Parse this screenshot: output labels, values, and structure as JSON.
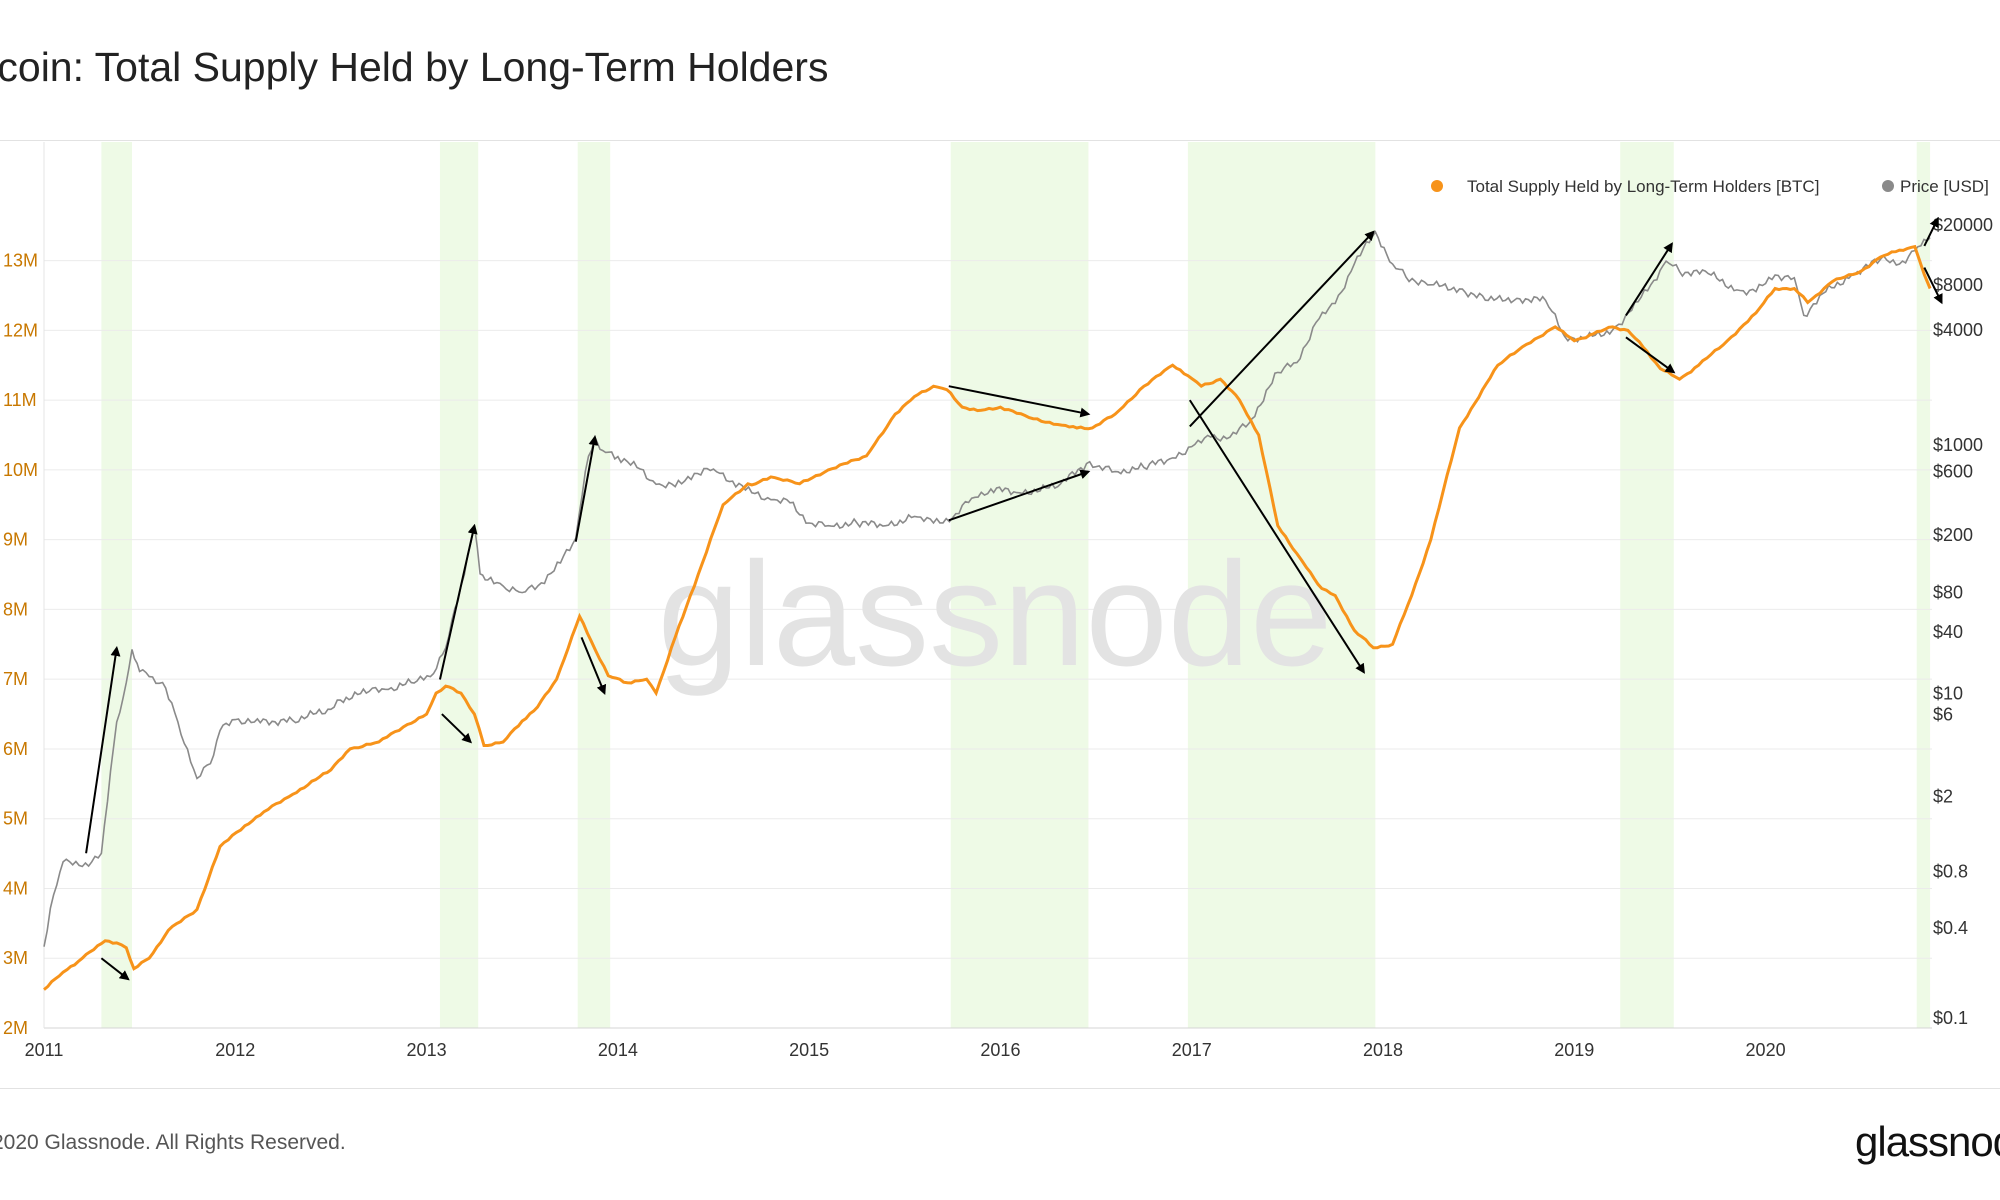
{
  "title": "tcoin: Total Supply Held by Long-Term Holders",
  "footer": {
    "copyright": "2020 Glassnode. All Rights Reserved.",
    "logo": "glassnod"
  },
  "watermark": "glassnode",
  "colors": {
    "supply": "#f7931a",
    "price": "#8a8a8a",
    "band": "#eefae6",
    "grid": "#ebebeb",
    "left_axis": "#c87800",
    "text": "#333333"
  },
  "chart_data": {
    "type": "line",
    "x_axis": {
      "ticks": [
        "2011",
        "2012",
        "2013",
        "2014",
        "2015",
        "2016",
        "2017",
        "2018",
        "2019",
        "2020"
      ],
      "range": [
        2011.0,
        2020.87
      ]
    },
    "y_left": {
      "ticks": [
        "13M",
        "12M",
        "11M",
        "10M",
        "9M",
        "8M",
        "7M",
        "6M",
        "5M",
        "4M",
        "3M",
        "2M"
      ],
      "tick_values": [
        13,
        12,
        11,
        10,
        9,
        8,
        7,
        6,
        5,
        4,
        3,
        2
      ],
      "range": [
        2,
        14.7
      ],
      "unit": "M BTC"
    },
    "y_right": {
      "scale": "log",
      "ticks": [
        "$20000",
        "$8000",
        "$4000",
        "$1000",
        "$600",
        "$200",
        "$80",
        "$40",
        "$10",
        "$6",
        "$2",
        "$0.8",
        "$0.4",
        "$0.1"
      ],
      "tick_values": [
        20000,
        8000,
        4000,
        1000,
        600,
        200,
        80,
        40,
        10,
        6,
        2,
        0.8,
        0.4,
        0.1
      ]
    },
    "legend": {
      "placement": "top-right",
      "entries": [
        "Total Supply Held by Long-Term Holders [BTC]",
        "Price [USD]"
      ]
    },
    "highlight_bands": [
      [
        2011.3,
        2011.46
      ],
      [
        2013.07,
        2013.27
      ],
      [
        2013.79,
        2013.96
      ],
      [
        2015.74,
        2016.46
      ],
      [
        2016.98,
        2017.96
      ],
      [
        2019.24,
        2019.52
      ],
      [
        2020.79,
        2020.86
      ]
    ],
    "series": [
      {
        "name": "Total Supply Held by Long-Term Holders [BTC]",
        "axis": "left",
        "unit": "M",
        "x": [
          2011.0,
          2011.1,
          2011.2,
          2011.32,
          2011.38,
          2011.43,
          2011.47,
          2011.55,
          2011.65,
          2011.8,
          2011.92,
          2012.05,
          2012.15,
          2012.3,
          2012.5,
          2012.6,
          2012.75,
          2012.9,
          2013.0,
          2013.05,
          2013.1,
          2013.18,
          2013.25,
          2013.3,
          2013.4,
          2013.5,
          2013.58,
          2013.68,
          2013.8,
          2013.86,
          2013.95,
          2014.05,
          2014.15,
          2014.2,
          2014.3,
          2014.42,
          2014.55,
          2014.68,
          2014.72,
          2014.8,
          2014.95,
          2015.1,
          2015.3,
          2015.45,
          2015.55,
          2015.65,
          2015.72,
          2015.8,
          2015.88,
          2016.0,
          2016.15,
          2016.3,
          2016.4,
          2016.48,
          2016.6,
          2016.75,
          2016.9,
          2016.98,
          2017.05,
          2017.15,
          2017.25,
          2017.35,
          2017.45,
          2017.55,
          2017.6,
          2017.68,
          2017.75,
          2017.85,
          2017.95,
          2018.05,
          2018.15,
          2018.25,
          2018.4,
          2018.6,
          2018.75,
          2018.9,
          2019.0,
          2019.1,
          2019.2,
          2019.28,
          2019.38,
          2019.45,
          2019.55,
          2019.65,
          2019.8,
          2019.95,
          2020.05,
          2020.15,
          2020.22,
          2020.35,
          2020.5,
          2020.6,
          2020.7,
          2020.78,
          2020.83,
          2020.86
        ],
        "y": [
          2.55,
          2.8,
          3.0,
          3.25,
          3.22,
          3.15,
          2.85,
          3.0,
          3.4,
          3.7,
          4.6,
          4.9,
          5.1,
          5.35,
          5.7,
          6.0,
          6.1,
          6.35,
          6.5,
          6.8,
          6.9,
          6.8,
          6.5,
          6.05,
          6.1,
          6.4,
          6.6,
          7.0,
          7.9,
          7.55,
          7.05,
          6.95,
          7.0,
          6.8,
          7.6,
          8.5,
          9.5,
          9.8,
          9.8,
          9.9,
          9.8,
          10.0,
          10.2,
          10.8,
          11.05,
          11.2,
          11.15,
          10.9,
          10.85,
          10.9,
          10.75,
          10.65,
          10.6,
          10.6,
          10.8,
          11.2,
          11.5,
          11.35,
          11.2,
          11.3,
          11.0,
          10.5,
          9.2,
          8.8,
          8.6,
          8.3,
          8.2,
          7.7,
          7.45,
          7.5,
          8.2,
          9.0,
          10.6,
          11.5,
          11.8,
          12.05,
          11.85,
          11.95,
          12.05,
          12.0,
          11.7,
          11.45,
          11.3,
          11.5,
          11.85,
          12.25,
          12.6,
          12.6,
          12.4,
          12.7,
          12.85,
          13.05,
          13.15,
          13.2,
          12.8,
          12.6
        ]
      },
      {
        "name": "Price [USD]",
        "axis": "right",
        "unit": "USD",
        "scale": "log",
        "x": [
          2011.0,
          2011.05,
          2011.1,
          2011.2,
          2011.3,
          2011.38,
          2011.43,
          2011.46,
          2011.5,
          2011.55,
          2011.62,
          2011.7,
          2011.8,
          2011.87,
          2011.92,
          2012.0,
          2012.1,
          2012.3,
          2012.5,
          2012.55,
          2012.7,
          2012.8,
          2012.95,
          2013.02,
          2013.1,
          2013.18,
          2013.25,
          2013.28,
          2013.32,
          2013.4,
          2013.5,
          2013.6,
          2013.7,
          2013.78,
          2013.83,
          2013.88,
          2013.92,
          2014.0,
          2014.1,
          2014.2,
          2014.3,
          2014.4,
          2014.5,
          2014.6,
          2014.7,
          2014.8,
          2014.9,
          2015.0,
          2015.1,
          2015.25,
          2015.4,
          2015.55,
          2015.65,
          2015.75,
          2015.85,
          2015.95,
          2016.1,
          2016.3,
          2016.45,
          2016.5,
          2016.6,
          2016.75,
          2016.9,
          2017.0,
          2017.1,
          2017.2,
          2017.3,
          2017.45,
          2017.55,
          2017.65,
          2017.75,
          2017.85,
          2017.96,
          2018.05,
          2018.12,
          2018.25,
          2018.4,
          2018.55,
          2018.7,
          2018.85,
          2018.95,
          2019.05,
          2019.2,
          2019.3,
          2019.4,
          2019.48,
          2019.55,
          2019.7,
          2019.85,
          2019.95,
          2020.05,
          2020.15,
          2020.2,
          2020.3,
          2020.45,
          2020.6,
          2020.7,
          2020.78,
          2020.86
        ],
        "y": [
          0.3,
          0.6,
          0.9,
          0.85,
          1.0,
          5.0,
          13.0,
          29.0,
          17.0,
          15.0,
          13.0,
          5.0,
          2.5,
          3.0,
          4.5,
          5.3,
          5.0,
          5.2,
          6.8,
          8.5,
          10.5,
          11.0,
          13.5,
          15.0,
          30.0,
          90.0,
          230.0,
          110.0,
          100.0,
          90.0,
          80.0,
          95.0,
          130.0,
          190.0,
          600.0,
          1100.0,
          900.0,
          800.0,
          650.0,
          470.0,
          450.0,
          580.0,
          630.0,
          500.0,
          400.0,
          350.0,
          330.0,
          240.0,
          230.0,
          240.0,
          230.0,
          265.0,
          240.0,
          260.0,
          360.0,
          430.0,
          400.0,
          450.0,
          700.0,
          660.0,
          600.0,
          650.0,
          780.0,
          970.0,
          1100.0,
          1100.0,
          1300.0,
          2400.0,
          2700.0,
          4500.0,
          6000.0,
          11000.0,
          18000.0,
          11000.0,
          9000.0,
          8000.0,
          7500.0,
          6300.0,
          6500.0,
          6300.0,
          3700.0,
          3600.0,
          4000.0,
          5400.0,
          8000.0,
          11500.0,
          9800.0,
          9500.0,
          7400.0,
          7200.0,
          9300.0,
          8900.0,
          5000.0,
          7000.0,
          9300.0,
          11800.0,
          11000.0,
          13500.0,
          16500.0
        ]
      }
    ]
  }
}
